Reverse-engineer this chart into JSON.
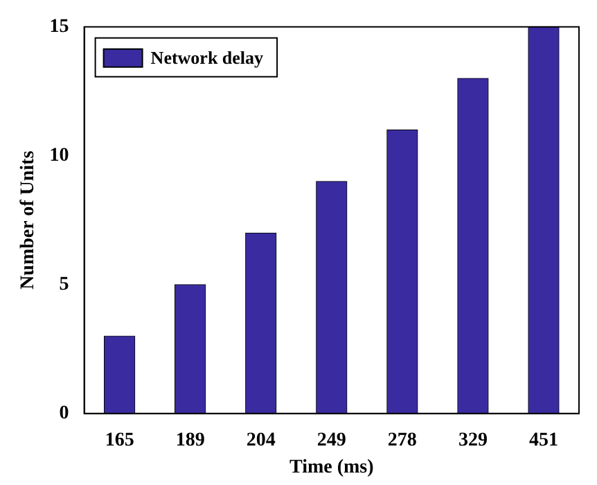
{
  "chart_data": {
    "type": "bar",
    "xlabel": "Time (ms)",
    "ylabel": "Number of Units",
    "categories": [
      "165",
      "189",
      "204",
      "249",
      "278",
      "329",
      "451"
    ],
    "series": [
      {
        "name": "Network delay",
        "color": "#3a2ca0",
        "values": [
          3,
          5,
          7,
          9,
          11,
          13,
          15
        ]
      }
    ],
    "ylim": [
      0,
      15
    ],
    "yticks": [
      0,
      5,
      10,
      15
    ],
    "grid": false,
    "legend": "top left"
  }
}
